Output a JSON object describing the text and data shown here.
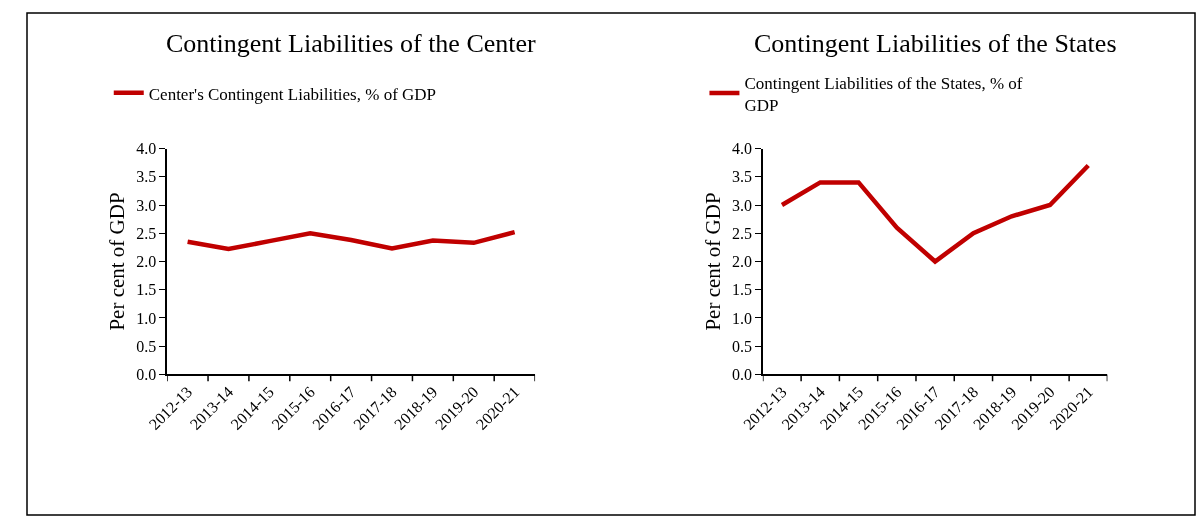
{
  "chart_data": [
    {
      "type": "line",
      "title": "Contingent Liabilities of the Center",
      "ylabel": "Per cent of GDP",
      "categories": [
        "2012-13",
        "2013-14",
        "2014-15",
        "2015-16",
        "2016-17",
        "2017-18",
        "2018-19",
        "2019-20",
        "2020-21"
      ],
      "series": [
        {
          "name": "Center's Contingent Liabilities, % of GDP",
          "color": "#c00000",
          "values": [
            2.35,
            2.22,
            2.36,
            2.5,
            2.38,
            2.23,
            2.37,
            2.33,
            2.52
          ]
        }
      ],
      "ylim": [
        0,
        4
      ],
      "yticks": [
        {
          "value": 0,
          "label": "0.0"
        },
        {
          "value": 0.5,
          "label": "0.5"
        },
        {
          "value": 1,
          "label": "1.0"
        },
        {
          "value": 1.5,
          "label": "1.5"
        },
        {
          "value": 2,
          "label": "2.0"
        },
        {
          "value": 2.5,
          "label": "2.5"
        },
        {
          "value": 3,
          "label": "3.0"
        },
        {
          "value": 3.5,
          "label": "3.5"
        },
        {
          "value": 4,
          "label": "4.0"
        }
      ],
      "grid": false,
      "legend": "top",
      "marker": "none",
      "line_style": "solid"
    },
    {
      "type": "line",
      "title": "Contingent Liabilities of the States",
      "ylabel": "Per cent of GDP",
      "categories": [
        "2012-13",
        "2013-14",
        "2014-15",
        "2015-16",
        "2016-17",
        "2017-18",
        "2018-19",
        "2019-20",
        "2020-21"
      ],
      "series": [
        {
          "name": "Contingent Liabilities of the States, % of GDP",
          "color": "#c00000",
          "values": [
            3.0,
            3.4,
            3.4,
            2.6,
            2.0,
            2.5,
            2.8,
            3.0,
            3.7
          ]
        }
      ],
      "ylim": [
        0,
        4
      ],
      "yticks": [
        {
          "value": 0,
          "label": "0.0"
        },
        {
          "value": 0.5,
          "label": "0.5"
        },
        {
          "value": 1,
          "label": "1.0"
        },
        {
          "value": 1.5,
          "label": "1.5"
        },
        {
          "value": 2,
          "label": "2.0"
        },
        {
          "value": 2.5,
          "label": "2.5"
        },
        {
          "value": 3,
          "label": "3.0"
        },
        {
          "value": 3.5,
          "label": "3.5"
        },
        {
          "value": 4,
          "label": "4.0"
        }
      ],
      "grid": false,
      "legend": "top",
      "marker": "none",
      "line_style": "solid"
    }
  ]
}
